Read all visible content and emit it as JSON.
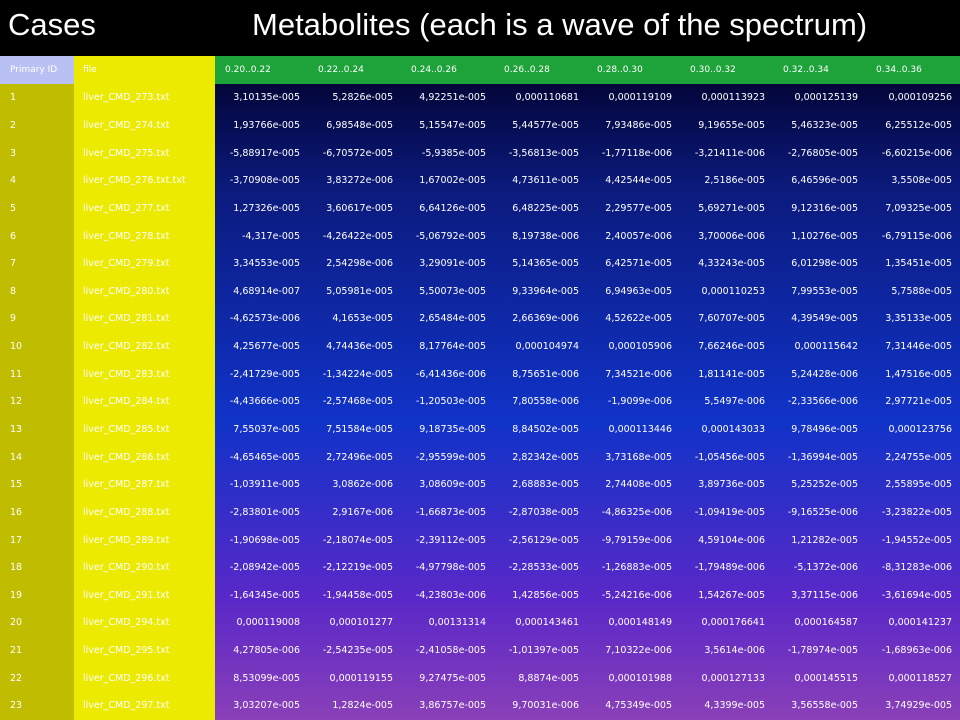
{
  "title_left": "Cases",
  "title_right": "Metabolites  (each is a wave of the spectrum)",
  "headers": {
    "primary_id": "Primary ID",
    "file": "file",
    "waves": [
      "0.20..0.22",
      "0.22..0.24",
      "0.24..0.26",
      "0.26..0.28",
      "0.28..0.30",
      "0.30..0.32",
      "0.32..0.34",
      "0.34..0.36"
    ]
  },
  "rows": [
    {
      "id": "1",
      "file": "liver_CMD_273.txt",
      "values": [
        "3,10135e-005",
        "5,2826e-005",
        "4,92251e-005",
        "0,000110681",
        "0,000119109",
        "0,000113923",
        "0,000125139",
        "0,000109256"
      ]
    },
    {
      "id": "2",
      "file": "liver_CMD_274.txt",
      "values": [
        "1,93766e-005",
        "6,98548e-005",
        "5,15547e-005",
        "5,44577e-005",
        "7,93486e-005",
        "9,19655e-005",
        "5,46323e-005",
        "6,25512e-005"
      ]
    },
    {
      "id": "3",
      "file": "liver_CMD_275.txt",
      "values": [
        "-5,88917e-005",
        "-6,70572e-005",
        "-5,9385e-005",
        "-3,56813e-005",
        "-1,77118e-006",
        "-3,21411e-006",
        "-2,76805e-005",
        "-6,60215e-006"
      ]
    },
    {
      "id": "4",
      "file": "liver_CMD_276.txt.txt",
      "values": [
        "-3,70908e-005",
        "3,83272e-006",
        "1,67002e-005",
        "4,73611e-005",
        "4,42544e-005",
        "2,5186e-005",
        "6,46596e-005",
        "3,5508e-005"
      ]
    },
    {
      "id": "5",
      "file": "liver_CMD_277.txt",
      "values": [
        "1,27326e-005",
        "3,60617e-005",
        "6,64126e-005",
        "6,48225e-005",
        "2,29577e-005",
        "5,69271e-005",
        "9,12316e-005",
        "7,09325e-005"
      ]
    },
    {
      "id": "6",
      "file": "liver_CMD_278.txt",
      "values": [
        "-4,317e-005",
        "-4,26422e-005",
        "-5,06792e-005",
        "8,19738e-006",
        "2,40057e-006",
        "3,70006e-006",
        "1,10276e-005",
        "-6,79115e-006"
      ]
    },
    {
      "id": "7",
      "file": "liver_CMD_279.txt",
      "values": [
        "3,34553e-005",
        "2,54298e-006",
        "3,29091e-005",
        "5,14365e-005",
        "6,42571e-005",
        "4,33243e-005",
        "6,01298e-005",
        "1,35451e-005"
      ]
    },
    {
      "id": "8",
      "file": "liver_CMD_280.txt",
      "values": [
        "4,68914e-007",
        "5,05981e-005",
        "5,50073e-005",
        "9,33964e-005",
        "6,94963e-005",
        "0,000110253",
        "7,99553e-005",
        "5,7588e-005"
      ]
    },
    {
      "id": "9",
      "file": "liver_CMD_281.txt",
      "values": [
        "-4,62573e-006",
        "4,1653e-005",
        "2,65484e-005",
        "2,66369e-006",
        "4,52622e-005",
        "7,60707e-005",
        "4,39549e-005",
        "3,35133e-005"
      ]
    },
    {
      "id": "10",
      "file": "liver_CMD_282.txt",
      "values": [
        "4,25677e-005",
        "4,74436e-005",
        "8,17764e-005",
        "0,000104974",
        "0,000105906",
        "7,66246e-005",
        "0,000115642",
        "7,31446e-005"
      ]
    },
    {
      "id": "11",
      "file": "liver_CMD_283.txt",
      "values": [
        "-2,41729e-005",
        "-1,34224e-005",
        "-6,41436e-006",
        "8,75651e-006",
        "7,34521e-006",
        "1,81141e-005",
        "5,24428e-006",
        "1,47516e-005"
      ]
    },
    {
      "id": "12",
      "file": "liver_CMD_284.txt",
      "values": [
        "-4,43666e-005",
        "-2,57468e-005",
        "-1,20503e-005",
        "7,80558e-006",
        "-1,9099e-006",
        "5,5497e-006",
        "-2,33566e-006",
        "2,97721e-005"
      ]
    },
    {
      "id": "13",
      "file": "liver_CMD_285.txt",
      "values": [
        "7,55037e-005",
        "7,51584e-005",
        "9,18735e-005",
        "8,84502e-005",
        "0,000113446",
        "0,000143033",
        "9,78496e-005",
        "0,000123756"
      ]
    },
    {
      "id": "14",
      "file": "liver_CMD_286.txt",
      "values": [
        "-4,65465e-005",
        "2,72496e-005",
        "-2,95599e-005",
        "2,82342e-005",
        "3,73168e-005",
        "-1,05456e-005",
        "-1,36994e-005",
        "2,24755e-005"
      ]
    },
    {
      "id": "15",
      "file": "liver_CMD_287.txt",
      "values": [
        "-1,03911e-005",
        "3,0862e-006",
        "3,08609e-005",
        "2,68883e-005",
        "2,74408e-005",
        "3,89736e-005",
        "5,25252e-005",
        "2,55895e-005"
      ]
    },
    {
      "id": "16",
      "file": "liver_CMD_288.txt",
      "values": [
        "-2,83801e-005",
        "2,9167e-006",
        "-1,66873e-005",
        "-2,87038e-005",
        "-4,86325e-006",
        "-1,09419e-005",
        "-9,16525e-006",
        "-3,23822e-005"
      ]
    },
    {
      "id": "17",
      "file": "liver_CMD_289.txt",
      "values": [
        "-1,90698e-005",
        "-2,18074e-005",
        "-2,39112e-005",
        "-2,56129e-005",
        "-9,79159e-006",
        "4,59104e-006",
        "1,21282e-005",
        "-1,94552e-005"
      ]
    },
    {
      "id": "18",
      "file": "liver_CMD_290.txt",
      "values": [
        "-2,08942e-005",
        "-2,12219e-005",
        "-4,97798e-005",
        "-2,28533e-005",
        "-1,26883e-005",
        "-1,79489e-006",
        "-5,1372e-006",
        "-8,31283e-006"
      ]
    },
    {
      "id": "19",
      "file": "liver_CMD_291.txt",
      "values": [
        "-1,64345e-005",
        "-1,94458e-005",
        "-4,23803e-006",
        "1,42856e-005",
        "-5,24216e-006",
        "1,54267e-005",
        "3,37115e-006",
        "-3,61694e-005"
      ]
    },
    {
      "id": "20",
      "file": "liver_CMD_294.txt",
      "values": [
        "0,000119008",
        "0,000101277",
        "0,00131314",
        "0,000143461",
        "0,000148149",
        "0,000176641",
        "0,000164587",
        "0,000141237"
      ]
    },
    {
      "id": "21",
      "file": "liver_CMD_295.txt",
      "values": [
        "4,27805e-006",
        "-2,54235e-005",
        "-2,41058e-005",
        "-1,01397e-005",
        "7,10322e-006",
        "3,5614e-006",
        "-1,78974e-005",
        "-1,68963e-006"
      ]
    },
    {
      "id": "22",
      "file": "liver_CMD_296.txt",
      "values": [
        "8,53099e-005",
        "0,000119155",
        "9,27475e-005",
        "8,8874e-005",
        "0,000101988",
        "0,000127133",
        "0,000145515",
        "0,000118527"
      ]
    },
    {
      "id": "23",
      "file": "liver_CMD_297.txt",
      "values": [
        "3,03207e-005",
        "1,2824e-005",
        "3,86757e-005",
        "9,70031e-006",
        "4,75349e-005",
        "4,3399e-005",
        "3,56558e-005",
        "3,74929e-005"
      ]
    }
  ]
}
